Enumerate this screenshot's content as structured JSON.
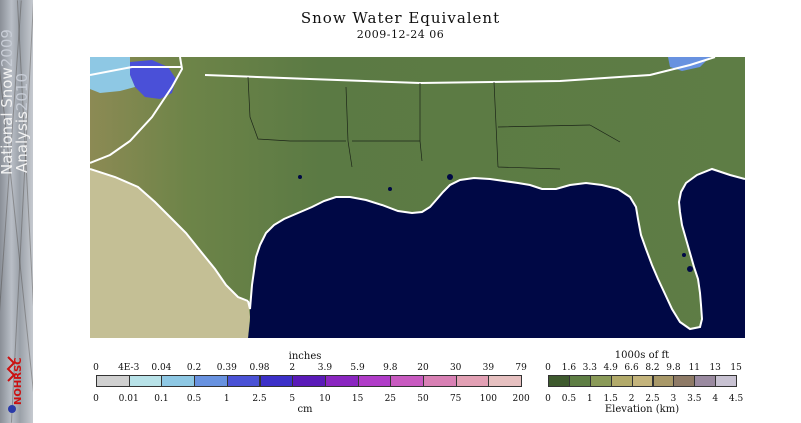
{
  "sidebar": {
    "title_line1": "National Snow",
    "year1": "2009",
    "title_line2": "Analysis",
    "year2": "2010",
    "logo_text": "NOHRSC"
  },
  "header": {
    "title": "Snow Water Equivalent",
    "subtitle": "2009-12-24 06"
  },
  "map": {
    "region": "Southeastern United States and Gulf of Mexico",
    "colors": {
      "ocean": "#000845",
      "land_low": "#5b7a44",
      "land_high": "#8c8a54",
      "mexico": "#c4bf95",
      "snow": "#4a50d8",
      "boundary": "#ffffff",
      "state_line": "#1c2518"
    }
  },
  "swe_legend": {
    "top_unit": "inches",
    "top_labels": [
      "0",
      "4E-3",
      "0.04",
      "0.2",
      "0.39",
      "0.98",
      "2",
      "3.9",
      "5.9",
      "9.8",
      "20",
      "30",
      "39",
      "79"
    ],
    "bottom_labels": [
      "0",
      "0.01",
      "0.1",
      "0.5",
      "1",
      "2.5",
      "5",
      "10",
      "15",
      "25",
      "50",
      "75",
      "100",
      "200"
    ],
    "bottom_unit": "cm",
    "colors": [
      "#d0d0d0",
      "#b8e2e8",
      "#8ec8e4",
      "#6892e0",
      "#4a52d6",
      "#3c30c8",
      "#5a1ab8",
      "#8a26c0",
      "#b03cc8",
      "#c85ac0",
      "#d880b4",
      "#e2a0b4",
      "#e6c0c0"
    ]
  },
  "elevation_legend": {
    "top_unit": "1000s of ft",
    "top_labels": [
      "0",
      "1.6",
      "3.3",
      "4.9",
      "6.6",
      "8.2",
      "9.8",
      "11",
      "13",
      "15"
    ],
    "bottom_labels": [
      "0",
      "0.5",
      "1",
      "1.5",
      "2",
      "2.5",
      "3",
      "3.5",
      "4",
      "4.5"
    ],
    "bottom_unit": "Elevation (km)",
    "colors": [
      "#3e5a2e",
      "#5e7e44",
      "#8a9a58",
      "#b2aa6a",
      "#c4b47c",
      "#a89868",
      "#8e7a66",
      "#9a8aa0",
      "#c8c2d2"
    ]
  }
}
